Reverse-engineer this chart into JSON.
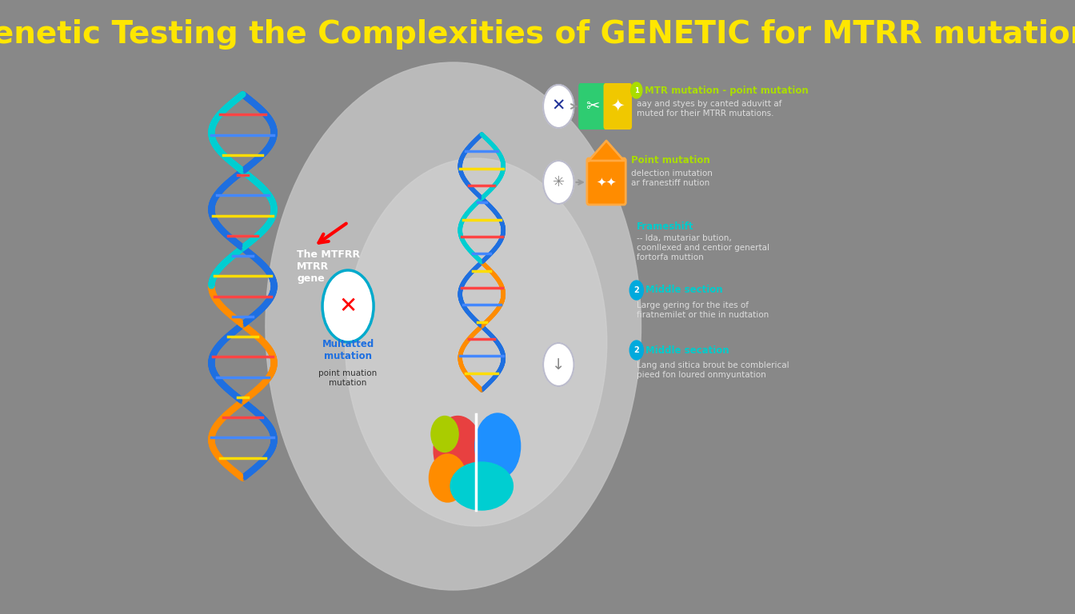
{
  "title": "Genetic Testing the Complexities of GENETIC for MTRR mutations",
  "title_color": "#FFE600",
  "title_fontsize": 28,
  "bg_color": "#888888",
  "dna_label": "The MTFRR\nMTRR\ngene",
  "mutated_label": "Multatted\nmutation",
  "mutated_sub": "point muation\nmutation",
  "items": [
    {
      "title": "MTR mutation - point mutation",
      "title_color": "#AADD00",
      "body": "aay and styes by canted aduvitt af\nmuted for their MTRR mutations.",
      "body_color": "#DDDDDD",
      "numbered": true,
      "num": "1",
      "num_color": "#AADD00"
    },
    {
      "title": "Point mutation",
      "title_color": "#AADD00",
      "body": "delection imutation\nar franestiff nution",
      "body_color": "#DDDDDD",
      "numbered": false
    },
    {
      "title": "Frameshift",
      "title_color": "#00CCCC",
      "body": "-- Ida, mutariar bution,\ncoonllexed and centior genertal\nfortorfa muttion",
      "body_color": "#DDDDDD",
      "numbered": false
    },
    {
      "title": "Middle section",
      "title_color": "#00CCCC",
      "body": "Large gering for the ites of\nfiratnemilet or thie in nudtation",
      "body_color": "#DDDDDD",
      "numbered": true,
      "num": "2",
      "num_color": "#00AADD"
    },
    {
      "title": "Middle secation",
      "title_color": "#00CCCC",
      "body": "Lang and sitica brout be comblerical\npieed fon loured onmyuntation",
      "body_color": "#DDDDDD",
      "numbered": true,
      "num": "2",
      "num_color": "#00AADD"
    }
  ]
}
